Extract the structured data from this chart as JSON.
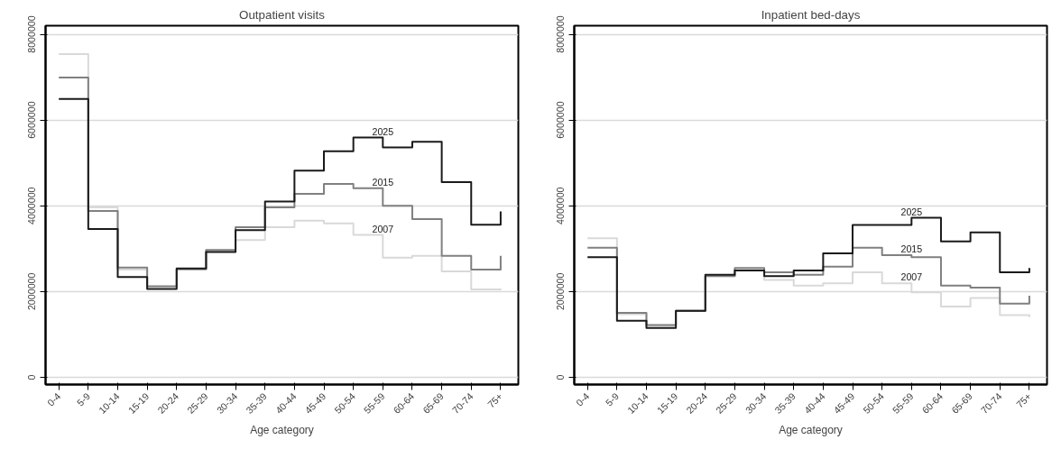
{
  "chart_data": [
    {
      "type": "step",
      "title": "Outpatient visits",
      "xlabel": "Age category",
      "categories": [
        "0-4",
        "5-9",
        "10-14",
        "15-19",
        "20-24",
        "25-29",
        "30-34",
        "35-39",
        "40-44",
        "45-49",
        "50-54",
        "55-59",
        "60-64",
        "65-69",
        "70-74",
        "75+"
      ],
      "series": [
        {
          "name": "2007",
          "color": "#d9d9d9",
          "values": [
            7540000,
            3960000,
            2510000,
            2110000,
            2510000,
            2940000,
            3200000,
            3500000,
            3650000,
            3590000,
            3320000,
            2790000,
            2830000,
            2470000,
            2050000,
            2070000
          ]
        },
        {
          "name": "2015",
          "color": "#808080",
          "values": [
            6990000,
            3880000,
            2560000,
            2120000,
            2520000,
            2970000,
            3500000,
            3960000,
            4280000,
            4510000,
            4410000,
            4000000,
            3690000,
            2830000,
            2510000,
            2830000
          ]
        },
        {
          "name": "2025",
          "color": "#1a1a1a",
          "values": [
            6490000,
            3460000,
            2340000,
            2060000,
            2540000,
            2920000,
            3430000,
            4100000,
            4820000,
            5270000,
            5590000,
            5360000,
            5490000,
            4550000,
            3560000,
            3870000
          ]
        }
      ],
      "ylim": [
        -170000,
        8200000
      ],
      "yticks": [
        0,
        2000000,
        4000000,
        6000000,
        8000000
      ],
      "grid": "y",
      "marker": "none",
      "line_style": "solid"
    },
    {
      "type": "step",
      "title": "Inpatient bed-days",
      "xlabel": "Age category",
      "categories": [
        "0-4",
        "5-9",
        "10-14",
        "15-19",
        "20-24",
        "25-29",
        "30-34",
        "35-39",
        "40-44",
        "45-49",
        "50-54",
        "55-59",
        "60-64",
        "65-69",
        "70-74",
        "75+"
      ],
      "series": [
        {
          "name": "2007",
          "color": "#d9d9d9",
          "values": [
            3240000,
            1470000,
            1200000,
            1550000,
            2360000,
            2500000,
            2270000,
            2140000,
            2190000,
            2450000,
            2190000,
            1980000,
            1650000,
            1850000,
            1450000,
            1400000
          ]
        },
        {
          "name": "2015",
          "color": "#808080",
          "values": [
            3020000,
            1500000,
            1220000,
            1550000,
            2360000,
            2550000,
            2450000,
            2390000,
            2580000,
            3020000,
            2850000,
            2800000,
            2140000,
            2090000,
            1720000,
            1900000
          ]
        },
        {
          "name": "2025",
          "color": "#1a1a1a",
          "values": [
            2800000,
            1320000,
            1150000,
            1550000,
            2390000,
            2490000,
            2360000,
            2490000,
            2890000,
            3550000,
            3550000,
            3720000,
            3170000,
            3380000,
            2450000,
            2550000
          ]
        }
      ],
      "ylim": [
        -170000,
        8200000
      ],
      "yticks": [
        0,
        2000000,
        4000000,
        6000000,
        8000000
      ],
      "grid": "y",
      "marker": "none",
      "line_style": "solid"
    }
  ]
}
